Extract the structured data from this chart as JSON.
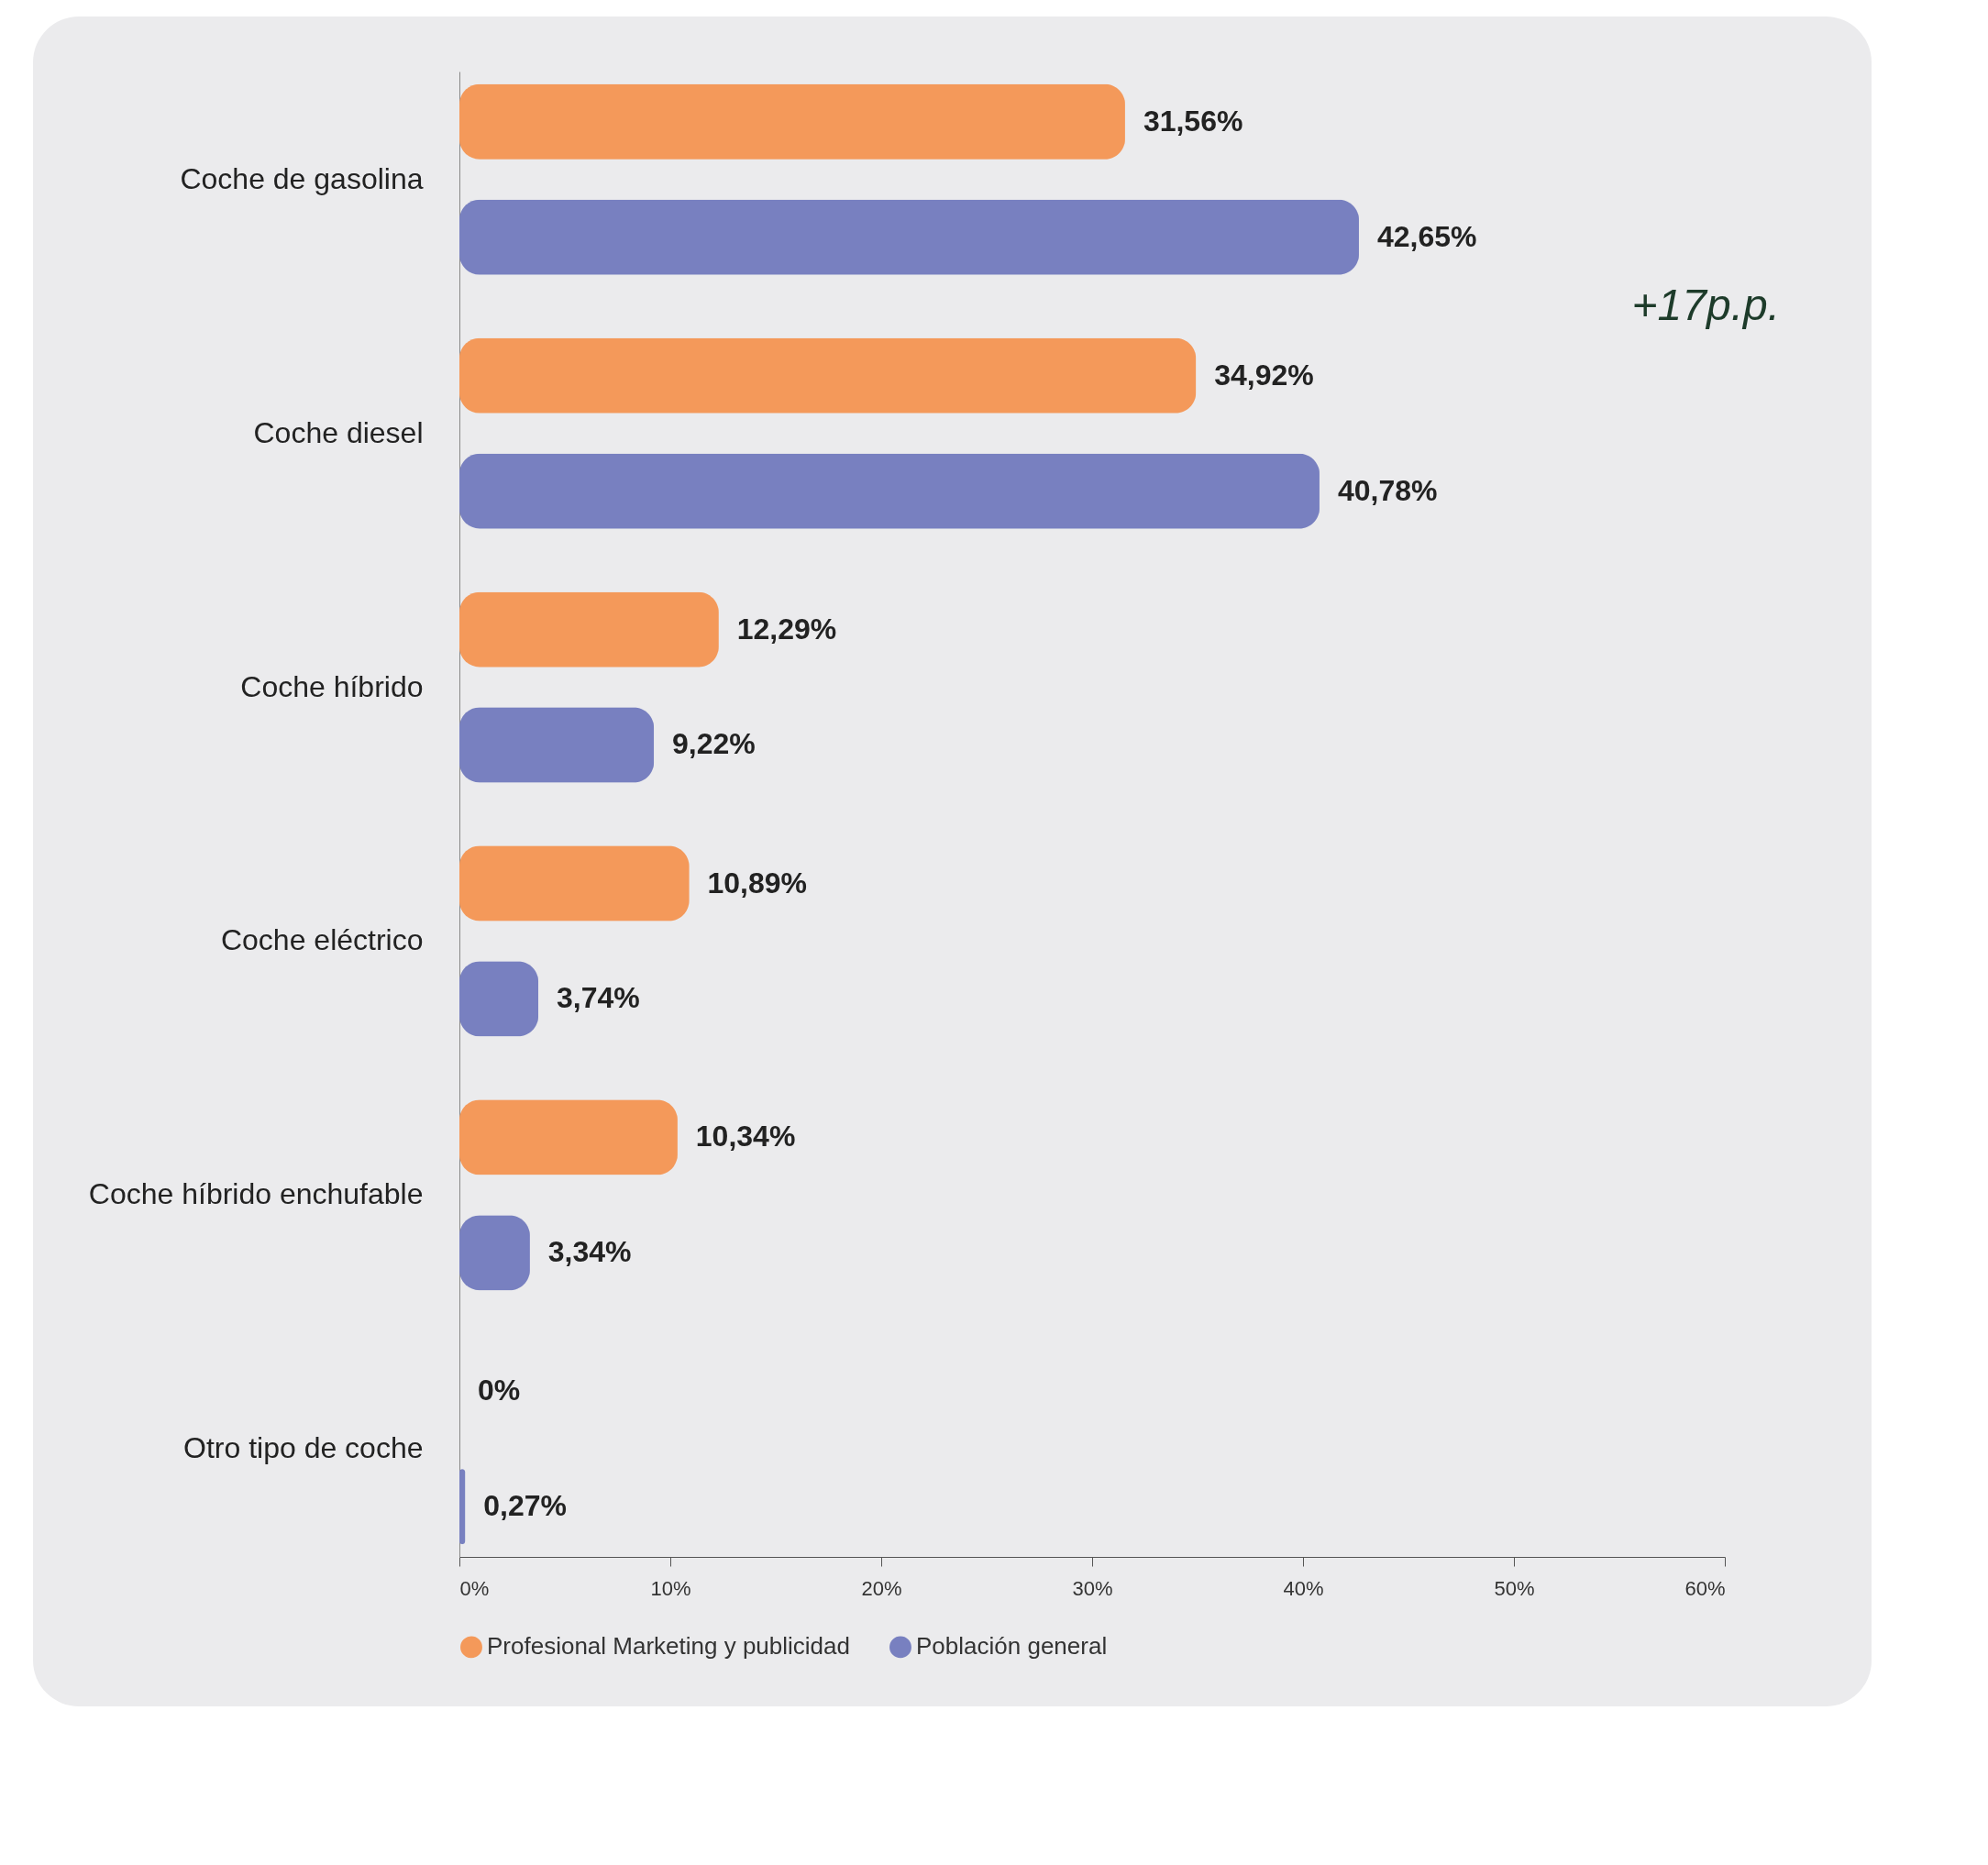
{
  "chart_data": {
    "type": "bar",
    "orientation": "horizontal",
    "categories": [
      "Coche de gasolina",
      "Coche diesel",
      "Coche híbrido",
      "Coche eléctrico",
      "Coche híbrido enchufable",
      "Otro tipo de coche"
    ],
    "series": [
      {
        "name": "Profesional Marketing y publicidad",
        "color": "#f4995a",
        "values": [
          31.56,
          34.92,
          12.29,
          10.89,
          10.34,
          0
        ],
        "value_labels": [
          "31,56%",
          "34,92%",
          "12,29%",
          "10,89%",
          "10,34%",
          "0%"
        ]
      },
      {
        "name": "Población general",
        "color": "#7880c0",
        "values": [
          42.65,
          40.78,
          9.22,
          3.74,
          3.34,
          0.27
        ],
        "value_labels": [
          "42,65%",
          "40,78%",
          "9,22%",
          "3,74%",
          "3,34%",
          "0,27%"
        ]
      }
    ],
    "xlim": [
      0,
      60
    ],
    "xticks": [
      {
        "value": 0,
        "label": "0%"
      },
      {
        "value": 10,
        "label": "10%"
      },
      {
        "value": 20,
        "label": "20%"
      },
      {
        "value": 30,
        "label": "30%"
      },
      {
        "value": 40,
        "label": "40%"
      },
      {
        "value": 50,
        "label": "50%"
      },
      {
        "value": 60,
        "label": "60%"
      }
    ],
    "annotations": [
      "+17p.p."
    ],
    "legend": "bottom",
    "grid": false
  }
}
